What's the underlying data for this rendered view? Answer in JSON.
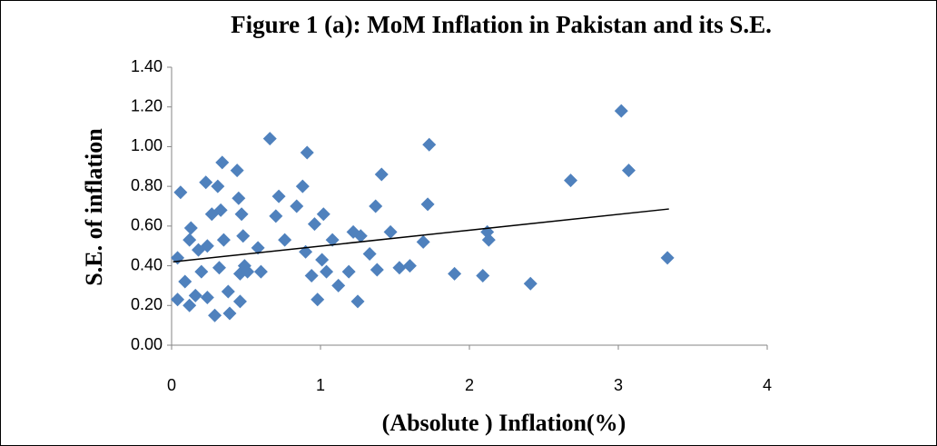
{
  "chart_data": {
    "type": "scatter",
    "title": "Figure 1 (a): MoM Inflation in Pakistan and its S.E.",
    "x_label": "(Absolute ) Inflation(%)",
    "y_label": "S.E. of inflation",
    "color": "#4f81bd",
    "xlim": [
      0,
      4
    ],
    "ylim": [
      0,
      1.4
    ],
    "xticks": [
      0,
      1,
      2,
      3,
      4
    ],
    "yticks": [
      {
        "value": 0,
        "label": "0.00"
      },
      {
        "value": 0.2,
        "label": "0.20"
      },
      {
        "value": 0.4,
        "label": "0.40"
      },
      {
        "value": 0.6,
        "label": "0.60"
      },
      {
        "value": 0.8,
        "label": "0.80"
      },
      {
        "value": 1.0,
        "label": "1.00"
      },
      {
        "value": 1.2,
        "label": "1.20"
      },
      {
        "value": 1.4,
        "label": "1.40"
      }
    ],
    "x": [
      0.04,
      0.06,
      0.04,
      0.09,
      0.12,
      0.13,
      0.12,
      0.16,
      0.18,
      0.2,
      0.23,
      0.24,
      0.24,
      0.27,
      0.29,
      0.31,
      0.33,
      0.34,
      0.35,
      0.32,
      0.39,
      0.38,
      0.44,
      0.45,
      0.47,
      0.48,
      0.46,
      0.46,
      0.49,
      0.51,
      0.58,
      0.6,
      0.66,
      0.7,
      0.72,
      0.76,
      0.84,
      0.88,
      0.91,
      0.9,
      0.96,
      0.94,
      0.98,
      1.01,
      1.02,
      1.04,
      1.08,
      1.12,
      1.19,
      1.22,
      1.25,
      1.27,
      1.33,
      1.37,
      1.38,
      1.41,
      1.47,
      1.53,
      1.6,
      1.69,
      1.72,
      1.73,
      1.9,
      2.09,
      2.12,
      2.13,
      2.41,
      2.68,
      3.02,
      3.07,
      3.33
    ],
    "values": [
      0.23,
      0.77,
      0.44,
      0.32,
      0.53,
      0.59,
      0.2,
      0.25,
      0.48,
      0.37,
      0.82,
      0.5,
      0.24,
      0.66,
      0.15,
      0.8,
      0.68,
      0.92,
      0.53,
      0.39,
      0.16,
      0.27,
      0.88,
      0.74,
      0.66,
      0.55,
      0.22,
      0.36,
      0.4,
      0.37,
      0.49,
      0.37,
      1.04,
      0.65,
      0.75,
      0.53,
      0.7,
      0.8,
      0.97,
      0.47,
      0.61,
      0.35,
      0.23,
      0.43,
      0.66,
      0.37,
      0.53,
      0.3,
      0.37,
      0.57,
      0.22,
      0.55,
      0.46,
      0.7,
      0.38,
      0.86,
      0.57,
      0.39,
      0.4,
      0.52,
      0.71,
      1.01,
      0.36,
      0.35,
      0.57,
      0.53,
      0.31,
      0.83,
      1.18,
      0.88,
      0.44
    ],
    "trendline": {
      "x": [
        0.01,
        3.34
      ],
      "y": [
        0.42,
        0.686
      ]
    }
  }
}
